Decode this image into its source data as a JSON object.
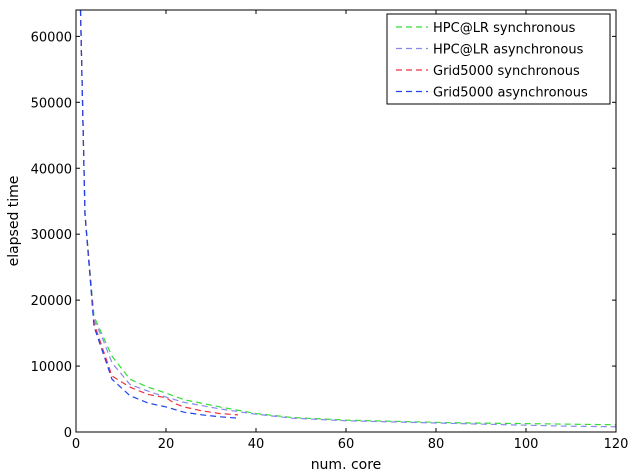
{
  "chart_data": {
    "type": "line",
    "title": "",
    "xlabel": "num. core",
    "ylabel": "elapsed time",
    "xlim": [
      0,
      120
    ],
    "ylim": [
      0,
      64000
    ],
    "xticks": [
      0,
      20,
      40,
      60,
      80,
      100,
      120
    ],
    "yticks": [
      0,
      10000,
      20000,
      30000,
      40000,
      50000,
      60000
    ],
    "grid": false,
    "legend_position": "top-right",
    "series": [
      {
        "name": "HPC@LR synchronous",
        "color": "#33dd33",
        "x": [
          1,
          2,
          4,
          6,
          8,
          12,
          16,
          20,
          24,
          32,
          40,
          48,
          60,
          72,
          84,
          96,
          108,
          120
        ],
        "y": [
          64000,
          33000,
          17500,
          14500,
          11500,
          8000,
          6800,
          5900,
          4900,
          3800,
          2800,
          2200,
          1800,
          1600,
          1400,
          1300,
          1200,
          1100
        ]
      },
      {
        "name": "HPC@LR asynchronous",
        "color": "#8888ee",
        "x": [
          1,
          2,
          4,
          6,
          8,
          12,
          16,
          20,
          24,
          32,
          40,
          48,
          60,
          72,
          84,
          96,
          108,
          120
        ],
        "y": [
          64000,
          33000,
          17000,
          14000,
          10500,
          7200,
          6200,
          5300,
          4500,
          3500,
          2700,
          2100,
          1700,
          1500,
          1300,
          1100,
          900,
          800
        ]
      },
      {
        "name": "Grid5000 synchronous",
        "color": "#ee3344",
        "x": [
          1,
          2,
          4,
          6,
          8,
          12,
          16,
          20,
          22,
          24,
          28,
          32,
          36
        ],
        "y": [
          64000,
          33000,
          16500,
          12500,
          8500,
          6800,
          5700,
          5200,
          4300,
          3800,
          3200,
          2800,
          2600
        ]
      },
      {
        "name": "Grid5000 asynchronous",
        "color": "#2244ee",
        "x": [
          1,
          2,
          4,
          6,
          8,
          12,
          16,
          20,
          24,
          28,
          32,
          36
        ],
        "y": [
          64000,
          33000,
          16000,
          12000,
          8000,
          5500,
          4400,
          3800,
          3000,
          2600,
          2300,
          2100
        ]
      }
    ]
  }
}
